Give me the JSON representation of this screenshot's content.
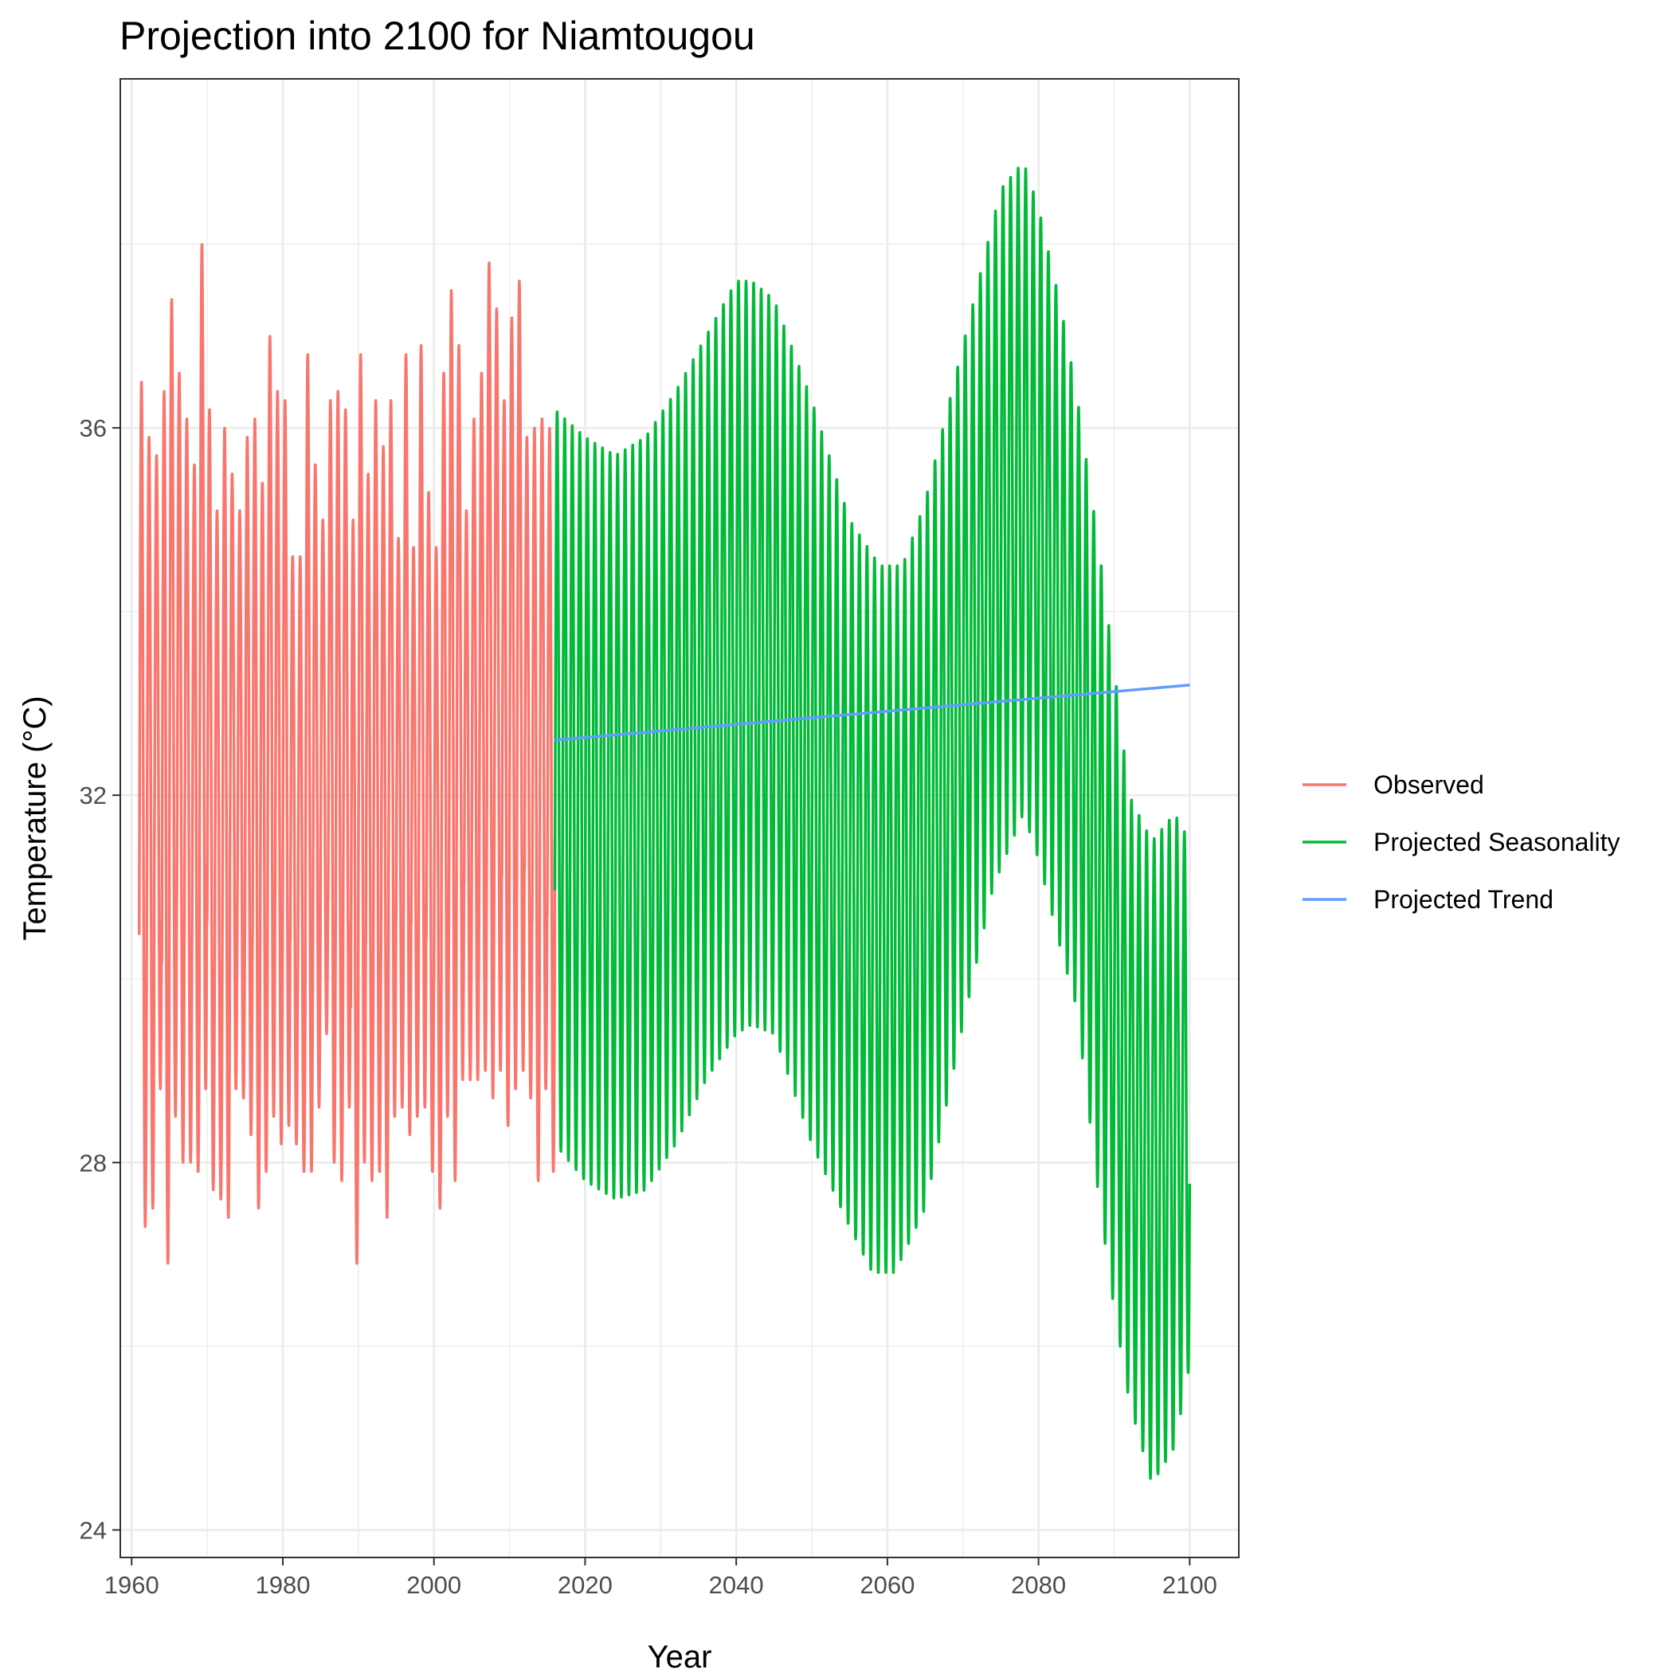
{
  "chart_data": {
    "type": "line",
    "title": "Projection into 2100 for Niamtougou",
    "xlabel": "Year",
    "ylabel": "Temperature (°C)",
    "xlim": [
      1958.5,
      2106.5
    ],
    "ylim": [
      23.7,
      39.8
    ],
    "x_ticks": [
      1960,
      1980,
      2000,
      2020,
      2040,
      2060,
      2080,
      2100
    ],
    "x_tick_labels": [
      "1960",
      "1980",
      "2000",
      "2020",
      "2040",
      "2060",
      "2080",
      "2100"
    ],
    "y_ticks": [
      24,
      28,
      32,
      36
    ],
    "y_tick_labels": [
      "24",
      "28",
      "32",
      "36"
    ],
    "grid": true,
    "legend_position": "right",
    "series": [
      {
        "name": "Observed",
        "color": "#F8766D",
        "x_start": 1961,
        "x_end": 2016,
        "cycles_per_year": 1,
        "yearly_max": [
          36.5,
          35.9,
          35.7,
          36.4,
          37.4,
          36.6,
          36.1,
          35.6,
          38.0,
          36.2,
          35.1,
          36.0,
          35.5,
          35.1,
          35.9,
          36.1,
          35.4,
          37.0,
          36.4,
          36.3,
          34.6,
          34.6,
          36.8,
          35.6,
          35.0,
          36.3,
          36.4,
          36.2,
          35.0,
          36.8,
          35.5,
          36.3,
          35.8,
          36.3,
          34.8,
          36.8,
          34.7,
          36.9,
          35.3,
          34.7,
          36.6,
          37.5,
          36.9,
          35.1,
          36.1,
          36.6,
          37.8,
          37.3,
          36.3,
          37.2,
          37.6,
          35.9,
          36.0,
          36.1,
          36.0,
          36.5
        ],
        "yearly_min": [
          27.3,
          27.5,
          28.8,
          26.9,
          28.5,
          28.0,
          28.0,
          27.9,
          28.8,
          27.7,
          27.6,
          27.4,
          28.8,
          28.7,
          28.3,
          27.5,
          27.9,
          28.5,
          28.2,
          28.4,
          28.2,
          27.9,
          27.9,
          28.6,
          29.4,
          28.0,
          27.8,
          28.6,
          26.9,
          28.0,
          27.8,
          27.9,
          27.4,
          28.5,
          28.6,
          28.3,
          28.5,
          28.6,
          27.9,
          27.5,
          28.5,
          27.8,
          28.9,
          28.9,
          28.9,
          29.0,
          28.7,
          29.0,
          28.4,
          28.8,
          29.0,
          28.7,
          27.8,
          28.8,
          27.9,
          28.9
        ]
      },
      {
        "name": "Projected Seasonality",
        "color": "#00BA38",
        "x_start": 2016,
        "x_end": 2100,
        "cycles_per_year": 1,
        "envelope_max": [
          [
            2016,
            36.2
          ],
          [
            2020,
            35.9
          ],
          [
            2024,
            35.7
          ],
          [
            2028,
            35.9
          ],
          [
            2032,
            36.4
          ],
          [
            2036,
            37.0
          ],
          [
            2040,
            37.6
          ],
          [
            2042,
            37.6
          ],
          [
            2045,
            37.4
          ],
          [
            2050,
            36.3
          ],
          [
            2055,
            35.0
          ],
          [
            2059,
            34.5
          ],
          [
            2062,
            34.5
          ],
          [
            2065,
            35.2
          ],
          [
            2070,
            36.9
          ],
          [
            2075,
            38.6
          ],
          [
            2078,
            38.9
          ],
          [
            2080,
            38.4
          ],
          [
            2083,
            37.3
          ],
          [
            2085,
            36.4
          ],
          [
            2088,
            34.7
          ],
          [
            2090,
            33.4
          ],
          [
            2092,
            32.0
          ],
          [
            2095,
            31.5
          ],
          [
            2098,
            31.8
          ],
          [
            2100,
            31.5
          ]
        ],
        "envelope_min": [
          [
            2016,
            28.2
          ],
          [
            2020,
            27.8
          ],
          [
            2024,
            27.6
          ],
          [
            2028,
            27.7
          ],
          [
            2032,
            28.2
          ],
          [
            2036,
            28.9
          ],
          [
            2040,
            29.4
          ],
          [
            2042,
            29.5
          ],
          [
            2045,
            29.4
          ],
          [
            2050,
            28.2
          ],
          [
            2055,
            27.3
          ],
          [
            2058,
            26.8
          ],
          [
            2061,
            26.8
          ],
          [
            2065,
            27.5
          ],
          [
            2070,
            29.5
          ],
          [
            2074,
            31.0
          ],
          [
            2078,
            31.8
          ],
          [
            2080,
            31.3
          ],
          [
            2083,
            30.3
          ],
          [
            2085,
            29.7
          ],
          [
            2088,
            27.6
          ],
          [
            2090,
            26.4
          ],
          [
            2092,
            25.4
          ],
          [
            2095,
            24.5
          ],
          [
            2098,
            24.9
          ],
          [
            2100,
            25.8
          ]
        ]
      },
      {
        "name": "Projected Trend",
        "color": "#619CFF",
        "x": [
          2016,
          2100
        ],
        "values": [
          32.6,
          33.2
        ]
      }
    ]
  }
}
